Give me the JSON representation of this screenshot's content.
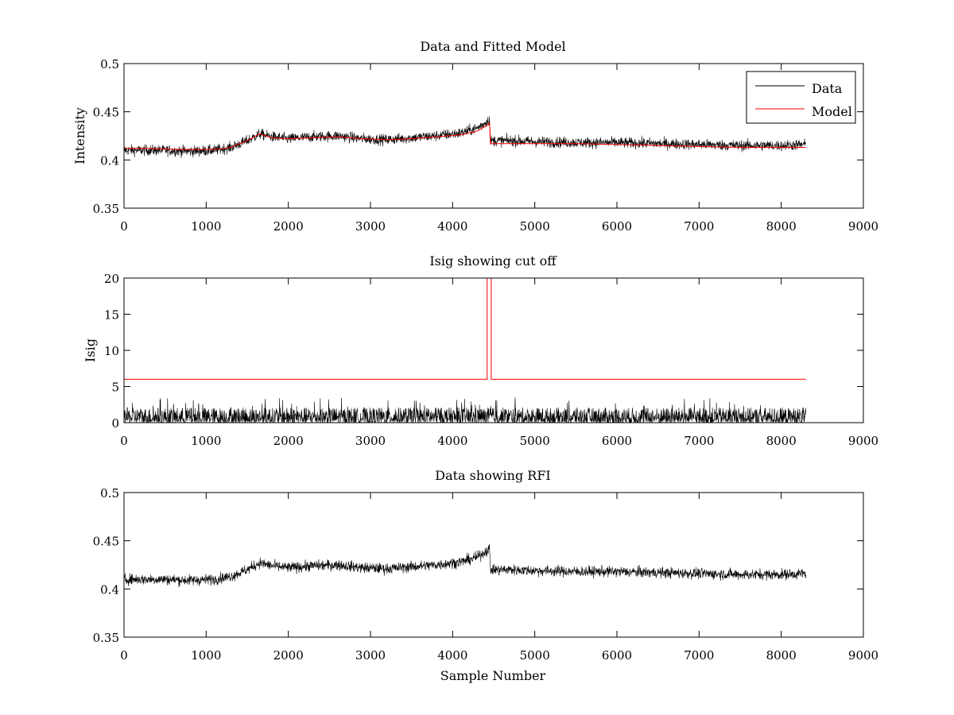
{
  "chart_data": [
    {
      "type": "line",
      "title": "Data and Fitted Model",
      "xlabel": "",
      "ylabel": "Intensity",
      "xlim": [
        0,
        9000
      ],
      "ylim": [
        0.35,
        0.5
      ],
      "xticks": [
        0,
        1000,
        2000,
        3000,
        4000,
        5000,
        6000,
        7000,
        8000,
        9000
      ],
      "xtick_labels": [
        "0",
        "1000",
        "2000",
        "3000",
        "4000",
        "5000",
        "6000",
        "7000",
        "8000",
        "9000"
      ],
      "yticks": [
        0.35,
        0.4,
        0.45,
        0.5
      ],
      "ytick_labels": [
        "0.35",
        "0.4",
        "0.45",
        "0.5"
      ],
      "grid": false,
      "legend_position": "top-right",
      "series": [
        {
          "name": "Data",
          "color": "#000000",
          "noise": 0.004,
          "x": [
            0,
            200,
            500,
            800,
            1100,
            1300,
            1500,
            1650,
            1800,
            2000,
            2300,
            2600,
            2900,
            3200,
            3500,
            3800,
            4100,
            4300,
            4420,
            4450,
            4460,
            4700,
            5000,
            5500,
            6000,
            6500,
            7000,
            7500,
            8000,
            8300
          ],
          "y": [
            0.41,
            0.41,
            0.41,
            0.409,
            0.41,
            0.413,
            0.42,
            0.427,
            0.424,
            0.422,
            0.424,
            0.425,
            0.422,
            0.421,
            0.423,
            0.425,
            0.428,
            0.433,
            0.44,
            0.442,
            0.42,
            0.42,
            0.419,
            0.418,
            0.418,
            0.417,
            0.416,
            0.415,
            0.415,
            0.416
          ]
        },
        {
          "name": "Model",
          "color": "#ff0000",
          "x": [
            0,
            300,
            600,
            900,
            1100,
            1300,
            1500,
            1650,
            1800,
            2000,
            2300,
            2600,
            2900,
            3200,
            3500,
            3800,
            4100,
            4300,
            4420,
            4450,
            4460,
            4700,
            5000,
            5500,
            6000,
            6500,
            7000,
            7500,
            8000,
            8300
          ],
          "y": [
            0.412,
            0.412,
            0.411,
            0.411,
            0.411,
            0.413,
            0.42,
            0.427,
            0.423,
            0.422,
            0.423,
            0.424,
            0.422,
            0.421,
            0.422,
            0.424,
            0.426,
            0.43,
            0.436,
            0.438,
            0.417,
            0.417,
            0.417,
            0.417,
            0.416,
            0.415,
            0.414,
            0.413,
            0.413,
            0.413
          ]
        }
      ]
    },
    {
      "type": "line",
      "title": "Isig showing cut off",
      "xlabel": "",
      "ylabel": "Isig",
      "xlim": [
        0,
        9000
      ],
      "ylim": [
        0,
        20
      ],
      "xticks": [
        0,
        1000,
        2000,
        3000,
        4000,
        5000,
        6000,
        7000,
        8000,
        9000
      ],
      "xtick_labels": [
        "0",
        "1000",
        "2000",
        "3000",
        "4000",
        "5000",
        "6000",
        "7000",
        "8000",
        "9000"
      ],
      "yticks": [
        0,
        5,
        10,
        15,
        20
      ],
      "ytick_labels": [
        "0",
        "5",
        "10",
        "15",
        "20"
      ],
      "grid": false,
      "series": [
        {
          "color": "#000000",
          "style": "noise",
          "x_range": [
            0,
            8300
          ],
          "y_range": [
            0,
            3.5
          ]
        },
        {
          "color": "#ff0000",
          "x": [
            0,
            4420,
            4420,
            4470,
            4470,
            8300
          ],
          "y": [
            6,
            6,
            20,
            20,
            6,
            6
          ]
        }
      ]
    },
    {
      "type": "line",
      "title": "Data showing RFI",
      "xlabel": "Sample Number",
      "ylabel": "",
      "xlim": [
        0,
        9000
      ],
      "ylim": [
        0.35,
        0.5
      ],
      "xticks": [
        0,
        1000,
        2000,
        3000,
        4000,
        5000,
        6000,
        7000,
        8000,
        9000
      ],
      "xtick_labels": [
        "0",
        "1000",
        "2000",
        "3000",
        "4000",
        "5000",
        "6000",
        "7000",
        "8000",
        "9000"
      ],
      "yticks": [
        0.35,
        0.4,
        0.45,
        0.5
      ],
      "ytick_labels": [
        "0.35",
        "0.4",
        "0.45",
        "0.5"
      ],
      "grid": false,
      "series": [
        {
          "color": "#000000",
          "noise": 0.004,
          "x": [
            0,
            200,
            500,
            800,
            1100,
            1300,
            1500,
            1650,
            1800,
            2000,
            2300,
            2600,
            2900,
            3200,
            3500,
            3800,
            4100,
            4300,
            4420,
            4450,
            4460,
            4700,
            5000,
            5500,
            6000,
            6500,
            7000,
            7500,
            8000,
            8300
          ],
          "y": [
            0.41,
            0.41,
            0.41,
            0.409,
            0.41,
            0.413,
            0.42,
            0.427,
            0.424,
            0.422,
            0.424,
            0.425,
            0.422,
            0.421,
            0.423,
            0.425,
            0.428,
            0.433,
            0.44,
            0.442,
            0.42,
            0.42,
            0.419,
            0.418,
            0.418,
            0.417,
            0.416,
            0.415,
            0.415,
            0.416
          ]
        }
      ]
    }
  ]
}
